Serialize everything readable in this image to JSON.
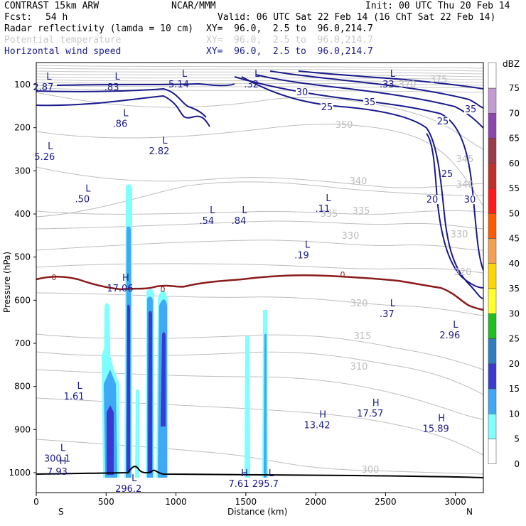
{
  "header": {
    "title": "CONTRAST 15km ARW",
    "source": "NCAR/MMM",
    "init": "Init: 00 UTC Thu 20 Feb 14",
    "fcst_label": "Fcst:",
    "fcst_value": "54 h",
    "valid": "Valid: 06 UTC Sat 22 Feb 14 (16 ChT Sat 22 Feb 14)"
  },
  "fields": [
    {
      "name": "Radar reflectivity (lamda = 10 cm)",
      "xy": "XY=  96.0,  2.5 to  96.0,214.7",
      "color": "#000000"
    },
    {
      "name": "Potential temperature",
      "xy": "XY=  96.0,  2.5 to  96.0,214.7",
      "color": "#c8c8c8"
    },
    {
      "name": "Horizontal wind speed",
      "xy": "XY=  96.0,  2.5 to  96.0,214.7",
      "color": "#1a1a8c"
    }
  ],
  "chart_data": {
    "type": "cross-section",
    "xlabel": "Distance (km)",
    "ylabel": "Pressure (hPa)",
    "xlim": [
      0,
      3200
    ],
    "ylim": [
      1045,
      85
    ],
    "x_ticks": [
      "0",
      "500",
      "1000",
      "1500",
      "2000",
      "2500",
      "3000"
    ],
    "y_ticks": [
      "100",
      "200",
      "300",
      "400",
      "500",
      "600",
      "700",
      "800",
      "900",
      "1000"
    ],
    "end_left": "S",
    "end_right": "N",
    "colorbar": {
      "unit": "dBZ",
      "labels": [
        "75",
        "70",
        "65",
        "60",
        "55",
        "50",
        "45",
        "40",
        "35",
        "30",
        "25",
        "20",
        "15",
        "10",
        "5",
        "0"
      ],
      "colors": [
        "#c39bd3",
        "#8e44ad",
        "#9b3a4b",
        "#c0302a",
        "#ff1a1a",
        "#ff5a00",
        "#f5a050",
        "#ffd700",
        "#ffff2a",
        "#1fbf1f",
        "#2f7fc0",
        "#3a3ad0",
        "#3fa9f5",
        "#7fffff",
        "#ffffff"
      ]
    },
    "wind_contour_labels": [
      "20",
      "25",
      "25",
      "25",
      "30",
      "30",
      "35",
      "35"
    ],
    "theta_contour_labels": [
      "375",
      "370",
      "350",
      "345",
      "340",
      "340",
      "335",
      "335",
      "330",
      "330",
      "320",
      "320",
      "315",
      "310",
      "300"
    ],
    "freezing_label": "0",
    "extrema_markers": [
      {
        "x": 50,
        "p": 98,
        "sym": "L",
        "value": "2.87"
      },
      {
        "x": 540,
        "p": 98,
        "sym": "L",
        "value": ".83"
      },
      {
        "x": 1020,
        "p": 92,
        "sym": "L",
        "value": "5.14"
      },
      {
        "x": 1540,
        "p": 92,
        "sym": "L",
        "value": ".32"
      },
      {
        "x": 2510,
        "p": 92,
        "sym": "L",
        "value": ".33"
      },
      {
        "x": 600,
        "p": 183,
        "sym": "L",
        "value": ".86"
      },
      {
        "x": 60,
        "p": 260,
        "sym": "L",
        "value": "5.26"
      },
      {
        "x": 880,
        "p": 247,
        "sym": "L",
        "value": "2.82"
      },
      {
        "x": 330,
        "p": 358,
        "sym": "L",
        "value": ".50"
      },
      {
        "x": 1220,
        "p": 408,
        "sym": "L",
        "value": ".54"
      },
      {
        "x": 1450,
        "p": 408,
        "sym": "L",
        "value": ".84"
      },
      {
        "x": 2050,
        "p": 380,
        "sym": "L",
        "value": ".11"
      },
      {
        "x": 1900,
        "p": 488,
        "sym": "L",
        "value": ".19"
      },
      {
        "x": 600,
        "p": 565,
        "sym": "H",
        "value": "17.06"
      },
      {
        "x": 2510,
        "p": 624,
        "sym": "L",
        "value": ".37"
      },
      {
        "x": 2960,
        "p": 674,
        "sym": "L",
        "value": "2.96"
      },
      {
        "x": 270,
        "p": 815,
        "sym": "L",
        "value": "1.61"
      },
      {
        "x": 2390,
        "p": 855,
        "sym": "H",
        "value": "17.57"
      },
      {
        "x": 2010,
        "p": 882,
        "sym": "H",
        "value": "13.42"
      },
      {
        "x": 2860,
        "p": 890,
        "sym": "H",
        "value": "15.89"
      },
      {
        "x": 150,
        "p": 960,
        "sym": "L",
        "value": "300.1"
      },
      {
        "x": 150,
        "p": 990,
        "sym": "H",
        "value": "7.93"
      },
      {
        "x": 1450,
        "p": 1018,
        "sym": "H",
        "value": "7.61"
      },
      {
        "x": 1640,
        "p": 1018,
        "sym": "L",
        "value": "295.7"
      },
      {
        "x": 660,
        "p": 1030,
        "sym": "L",
        "value": "296.2"
      }
    ]
  }
}
